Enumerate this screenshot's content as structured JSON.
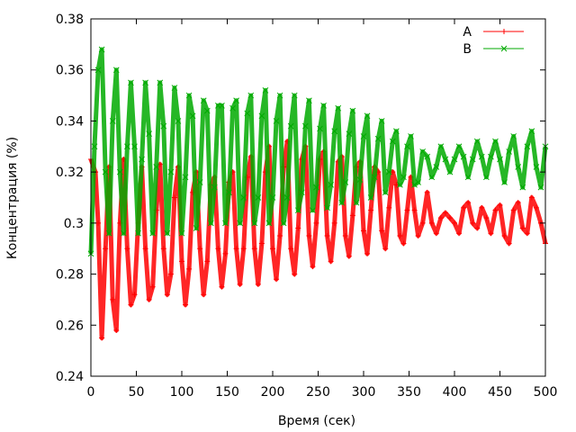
{
  "chart_data": {
    "type": "line",
    "xlabel": "Время (сек)",
    "ylabel": "Концентрация (%)",
    "xlim": [
      0,
      500
    ],
    "ylim": [
      0.24,
      0.38
    ],
    "x_ticks": [
      "0",
      "50",
      "100",
      "150",
      "200",
      "250",
      "300",
      "350",
      "400",
      "450",
      "500"
    ],
    "y_ticks": [
      "0.24",
      "0.26",
      "0.28",
      "0.3",
      "0.32",
      "0.34",
      "0.36",
      "0.38"
    ],
    "grid": false,
    "legend_position": "top-right",
    "series": [
      {
        "name": "A",
        "color": "#ff0000",
        "marker": "plus",
        "x": [
          0,
          5,
          8,
          12,
          16,
          20,
          24,
          28,
          32,
          36,
          40,
          44,
          48,
          52,
          56,
          60,
          64,
          68,
          72,
          76,
          80,
          84,
          88,
          92,
          96,
          100,
          104,
          108,
          112,
          116,
          120,
          124,
          128,
          132,
          136,
          140,
          144,
          148,
          152,
          156,
          160,
          164,
          168,
          172,
          176,
          180,
          184,
          188,
          192,
          196,
          200,
          204,
          208,
          212,
          216,
          220,
          224,
          228,
          232,
          236,
          240,
          244,
          248,
          252,
          256,
          260,
          264,
          268,
          272,
          276,
          280,
          284,
          288,
          292,
          296,
          300,
          304,
          308,
          312,
          316,
          320,
          324,
          328,
          332,
          336,
          340,
          344,
          348,
          352,
          356,
          360,
          365,
          370,
          375,
          380,
          385,
          390,
          395,
          400,
          405,
          410,
          415,
          420,
          425,
          430,
          435,
          440,
          445,
          450,
          455,
          460,
          465,
          470,
          475,
          480,
          485,
          490,
          495,
          500
        ],
        "y": [
          0.325,
          0.32,
          0.3,
          0.255,
          0.29,
          0.322,
          0.27,
          0.258,
          0.3,
          0.325,
          0.29,
          0.268,
          0.272,
          0.3,
          0.322,
          0.29,
          0.27,
          0.275,
          0.305,
          0.323,
          0.29,
          0.272,
          0.28,
          0.31,
          0.322,
          0.285,
          0.268,
          0.282,
          0.312,
          0.32,
          0.29,
          0.272,
          0.285,
          0.315,
          0.318,
          0.29,
          0.275,
          0.288,
          0.316,
          0.32,
          0.29,
          0.276,
          0.29,
          0.318,
          0.326,
          0.29,
          0.276,
          0.292,
          0.32,
          0.33,
          0.29,
          0.278,
          0.295,
          0.322,
          0.332,
          0.29,
          0.28,
          0.298,
          0.325,
          0.33,
          0.295,
          0.283,
          0.3,
          0.325,
          0.328,
          0.295,
          0.285,
          0.3,
          0.324,
          0.326,
          0.295,
          0.287,
          0.303,
          0.322,
          0.324,
          0.297,
          0.288,
          0.305,
          0.322,
          0.32,
          0.297,
          0.29,
          0.306,
          0.32,
          0.315,
          0.295,
          0.292,
          0.305,
          0.318,
          0.305,
          0.295,
          0.3,
          0.312,
          0.3,
          0.296,
          0.302,
          0.304,
          0.302,
          0.3,
          0.296,
          0.306,
          0.308,
          0.3,
          0.298,
          0.306,
          0.302,
          0.296,
          0.305,
          0.307,
          0.295,
          0.292,
          0.305,
          0.308,
          0.298,
          0.296,
          0.31,
          0.306,
          0.3,
          0.292
        ]
      },
      {
        "name": "B",
        "color": "#00aa00",
        "marker": "x",
        "x": [
          0,
          4,
          8,
          12,
          16,
          20,
          24,
          28,
          32,
          36,
          40,
          44,
          48,
          52,
          56,
          60,
          64,
          68,
          72,
          76,
          80,
          84,
          88,
          92,
          96,
          100,
          104,
          108,
          112,
          116,
          120,
          124,
          128,
          132,
          136,
          140,
          144,
          148,
          152,
          156,
          160,
          164,
          168,
          172,
          176,
          180,
          184,
          188,
          192,
          196,
          200,
          204,
          208,
          212,
          216,
          220,
          224,
          228,
          232,
          236,
          240,
          244,
          248,
          252,
          256,
          260,
          264,
          268,
          272,
          276,
          280,
          284,
          288,
          292,
          296,
          300,
          304,
          308,
          312,
          316,
          320,
          324,
          328,
          332,
          336,
          340,
          344,
          348,
          352,
          356,
          360,
          365,
          370,
          375,
          380,
          385,
          390,
          395,
          400,
          405,
          410,
          415,
          420,
          425,
          430,
          435,
          440,
          445,
          450,
          455,
          460,
          465,
          470,
          475,
          480,
          485,
          490,
          495,
          500
        ],
        "y": [
          0.288,
          0.33,
          0.36,
          0.368,
          0.32,
          0.296,
          0.34,
          0.36,
          0.32,
          0.296,
          0.33,
          0.355,
          0.33,
          0.296,
          0.325,
          0.355,
          0.335,
          0.296,
          0.322,
          0.355,
          0.338,
          0.296,
          0.32,
          0.353,
          0.34,
          0.296,
          0.318,
          0.35,
          0.342,
          0.298,
          0.316,
          0.348,
          0.344,
          0.3,
          0.314,
          0.346,
          0.346,
          0.3,
          0.312,
          0.345,
          0.348,
          0.3,
          0.31,
          0.343,
          0.35,
          0.3,
          0.31,
          0.342,
          0.352,
          0.3,
          0.31,
          0.34,
          0.35,
          0.3,
          0.31,
          0.338,
          0.35,
          0.305,
          0.312,
          0.338,
          0.348,
          0.305,
          0.314,
          0.337,
          0.346,
          0.306,
          0.315,
          0.336,
          0.345,
          0.308,
          0.316,
          0.335,
          0.344,
          0.308,
          0.317,
          0.334,
          0.342,
          0.31,
          0.318,
          0.333,
          0.34,
          0.312,
          0.32,
          0.332,
          0.336,
          0.315,
          0.318,
          0.33,
          0.334,
          0.315,
          0.316,
          0.328,
          0.326,
          0.318,
          0.322,
          0.33,
          0.325,
          0.32,
          0.325,
          0.33,
          0.326,
          0.318,
          0.325,
          0.332,
          0.326,
          0.318,
          0.326,
          0.332,
          0.325,
          0.316,
          0.328,
          0.334,
          0.322,
          0.314,
          0.33,
          0.336,
          0.322,
          0.314,
          0.33
        ]
      }
    ]
  }
}
